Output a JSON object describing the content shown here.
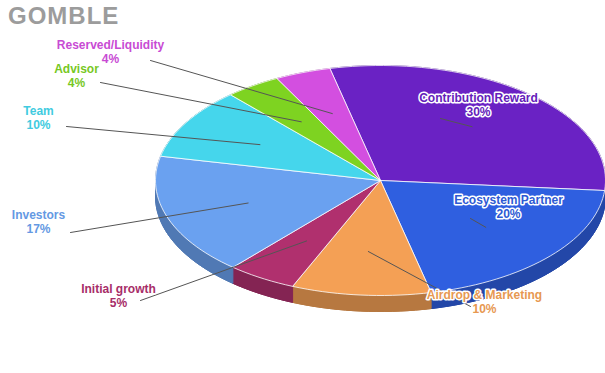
{
  "chart_data": {
    "type": "pie",
    "title": "GOMBLE",
    "categories": [
      "Contribution Reward",
      "Ecosystem Partner",
      "Airdrop & Marketing",
      "Initial growth",
      "Investors",
      "Team",
      "Advisor",
      "Reserved/Liquidity"
    ],
    "values": [
      30,
      20,
      10,
      5,
      17,
      10,
      4,
      4
    ],
    "value_labels": [
      "30%",
      "20%",
      "10%",
      "5%",
      "17%",
      "10%",
      "4%",
      "4%"
    ],
    "colors": [
      "#6a22c4",
      "#2f5fe0",
      "#f4a055",
      "#b0306e",
      "#6aa1f0",
      "#45d6ec",
      "#7ed321",
      "#d34fe0"
    ],
    "data_labels": true
  }
}
